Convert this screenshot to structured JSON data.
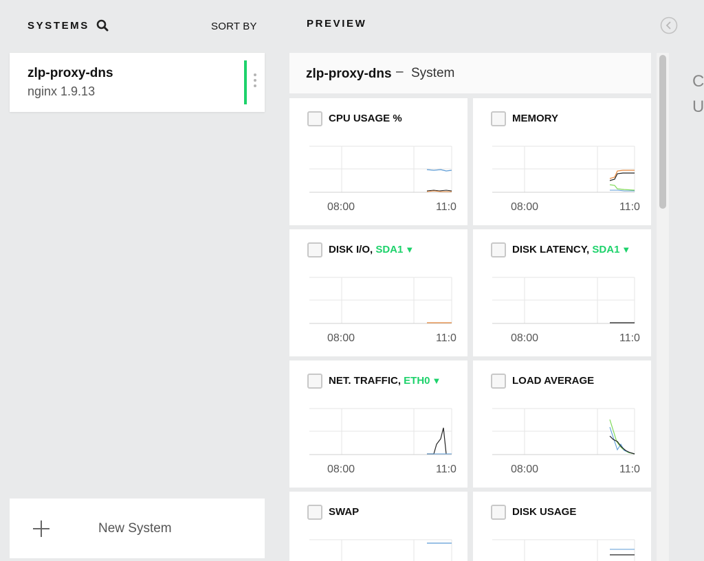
{
  "sidebar": {
    "title": "SYSTEMS",
    "sort_label": "SORT BY",
    "systems": [
      {
        "name": "zlp-proxy-dns",
        "version": "nginx 1.9.13",
        "status_color": "#1dd26b"
      }
    ],
    "new_system_label": "New System"
  },
  "preview": {
    "title": "PREVIEW",
    "system_name": "zlp-proxy-dns",
    "separator": "–",
    "subtitle": "System",
    "right_partial": [
      "C",
      "U"
    ]
  },
  "colors": {
    "accent": "#1dd26b",
    "series_blue": "#5b9bd5",
    "series_orange": "#e8883a",
    "series_black": "#222222",
    "series_green": "#7ed957"
  },
  "charts": [
    {
      "title": "CPU USAGE %",
      "sub": "",
      "caret": "",
      "ticks": [
        "08:00",
        "11:0"
      ]
    },
    {
      "title": "MEMORY",
      "sub": "",
      "caret": "",
      "ticks": [
        "08:00",
        "11:0"
      ]
    },
    {
      "title": "DISK I/O, ",
      "sub": "SDA1",
      "caret": "▼",
      "ticks": [
        "08:00",
        "11:0"
      ]
    },
    {
      "title": "DISK LATENCY, ",
      "sub": "SDA1",
      "caret": "▼",
      "ticks": [
        "08:00",
        "11:0"
      ]
    },
    {
      "title": "NET. TRAFFIC, ",
      "sub": "ETH0",
      "caret": "▼",
      "ticks": [
        "08:00",
        "11:0"
      ]
    },
    {
      "title": "LOAD AVERAGE",
      "sub": "",
      "caret": "",
      "ticks": [
        "08:00",
        "11:0"
      ]
    },
    {
      "title": "SWAP",
      "sub": "",
      "caret": "",
      "ticks": []
    },
    {
      "title": "DISK USAGE",
      "sub": "",
      "caret": "",
      "ticks": []
    }
  ]
}
